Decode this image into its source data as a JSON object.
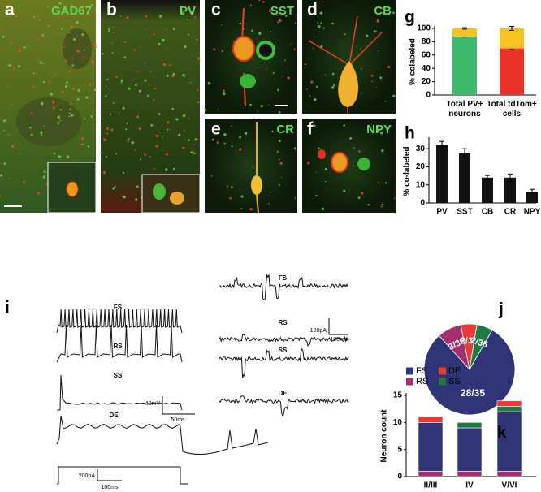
{
  "panel_labels": [
    "a",
    "b",
    "c",
    "d",
    "e",
    "f",
    "g",
    "h",
    "i",
    "j",
    "k"
  ],
  "image_labels": [
    "GAD67",
    "PV",
    "SST",
    "CB",
    "CR",
    "NPY"
  ],
  "traces": {
    "left": [
      "FS",
      "RS",
      "SS",
      "DE"
    ],
    "right": [
      "FS",
      "RS",
      "SS",
      "DE"
    ]
  },
  "scale_bars": [
    "40mV",
    "50ms",
    "100pA",
    "100ms",
    "200pA",
    "100ms"
  ],
  "chart_data": [
    {
      "type": "bar",
      "ylabel": "% colabeled",
      "categories": [
        "Total PV+ neurons",
        "Total tdTom+ cells"
      ],
      "series": [
        {
          "colors": [
            "#3dba6c",
            "#e8322a"
          ],
          "values": [
            88,
            70
          ],
          "errors": [
            1,
            2
          ]
        },
        {
          "color": "#f5c321",
          "values": [
            12,
            30
          ],
          "errors": [
            1,
            3
          ]
        }
      ],
      "ylim": [
        0,
        100
      ],
      "yticks": [
        0,
        20,
        40,
        60,
        80,
        100
      ],
      "grid": false
    },
    {
      "type": "bar",
      "ylabel": "% co-labeled",
      "categories": [
        "PV",
        "SST",
        "CB",
        "CR",
        "NPY"
      ],
      "series": [
        {
          "color": "#111111",
          "values": [
            32,
            27.5,
            14,
            14,
            6
          ],
          "errors": [
            2,
            2.5,
            1.2,
            2,
            1.5
          ]
        }
      ],
      "ylim": [
        0,
        35
      ],
      "yticks": [
        0,
        10,
        20,
        30
      ],
      "grid": false
    },
    {
      "type": "pie",
      "categories": [
        "FS",
        "RS",
        "DE",
        "SS"
      ],
      "values": [
        28,
        3,
        2,
        2
      ],
      "value_labels": [
        "28/35",
        "3/35",
        "2/35",
        "2/35"
      ],
      "colors": [
        "#2e3476",
        "#a2306e",
        "#e83a36",
        "#1e7a40"
      ]
    },
    {
      "type": "bar",
      "ylabel": "Neuron count",
      "categories": [
        "II/III",
        "IV",
        "V/VI"
      ],
      "series": [
        {
          "color": "#a2306e",
          "values": [
            1,
            1,
            1
          ]
        },
        {
          "color": "#2e3476",
          "values": [
            9,
            8,
            11
          ]
        },
        {
          "color": "#1e7a40",
          "values": [
            0,
            1,
            1
          ]
        },
        {
          "color": "#e83a36",
          "values": [
            1,
            0,
            1
          ]
        }
      ],
      "ylim": [
        0,
        15
      ],
      "yticks": [
        0,
        5,
        10,
        15
      ],
      "grid": false
    }
  ]
}
